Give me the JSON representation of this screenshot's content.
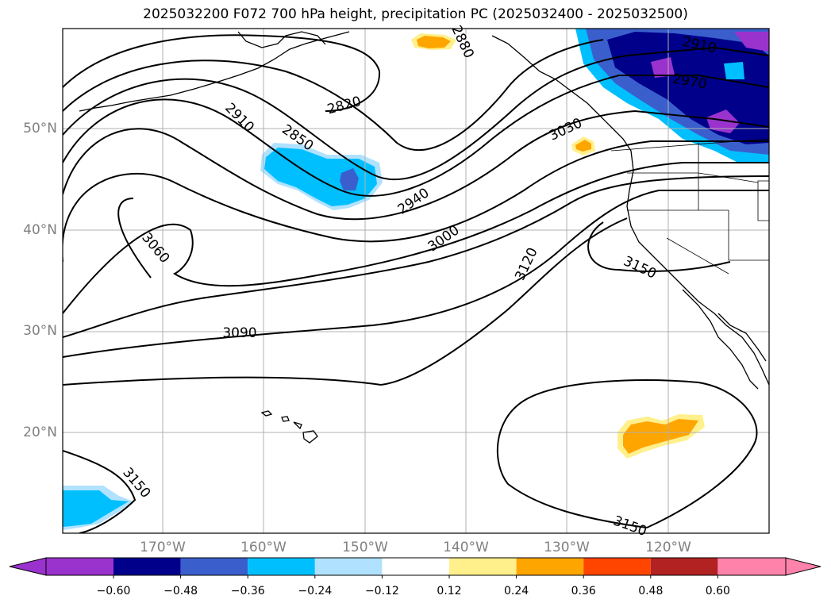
{
  "title": "2025032200 F072 700 hPa height, precipitation PC (2025032400 - 2025032500)",
  "lat_labels": [
    "50°N",
    "40°N",
    "30°N",
    "20°N"
  ],
  "lon_labels": [
    "170°W",
    "160°W",
    "150°W",
    "140°W",
    "130°W",
    "120°W"
  ],
  "contour_labels": [
    "2910",
    "2970",
    "2820",
    "2850",
    "2910",
    "2880",
    "3030",
    "2940",
    "3000",
    "3060",
    "3120",
    "3150",
    "3090",
    "3150",
    "3150"
  ],
  "colorbar": {
    "ticks": [
      "−0.60",
      "−0.48",
      "−0.36",
      "−0.24",
      "−0.12",
      "0.12",
      "0.24",
      "0.36",
      "0.48",
      "0.60"
    ],
    "colors": [
      "#9a32cd",
      "#00008b",
      "#3a5fcd",
      "#00bfff",
      "#b0e2ff",
      "#ffffff",
      "#fff08c",
      "#ffa500",
      "#ff4500",
      "#b22222",
      "#ff82ab"
    ]
  },
  "colors": {
    "grid": "#b0b0b0",
    "contour": "#000000",
    "axis_label": "#808080"
  }
}
